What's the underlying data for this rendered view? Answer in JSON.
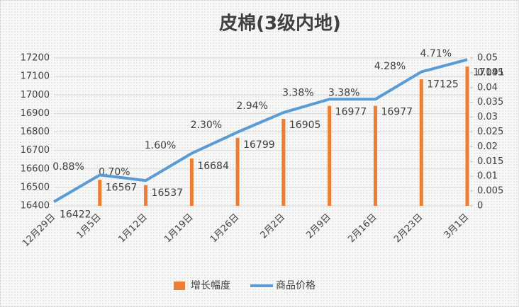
{
  "chart_data": {
    "type": "bar-line",
    "title": "皮棉(3级内地)",
    "categories": [
      "12月29日",
      "1月5日",
      "1月12日",
      "1月19日",
      "1月26日",
      "2月2日",
      "2月9日",
      "2月16日",
      "2月23日",
      "3月1日"
    ],
    "series": [
      {
        "name": "增长幅度",
        "type": "bar",
        "axis": "y2",
        "color": "#ed7d31",
        "values": [
          0,
          0.0088,
          0.007,
          0.016,
          0.023,
          0.0294,
          0.0338,
          0.0338,
          0.0428,
          0.0471
        ],
        "value_labels": [
          null,
          "0.88%",
          "0.70%",
          "1.60%",
          "2.30%",
          "2.94%",
          "3.38%",
          "3.38%",
          "4.28%",
          "4.71%"
        ]
      },
      {
        "name": "商品价格",
        "type": "line",
        "axis": "y",
        "color": "#5b9bd5",
        "values": [
          16422,
          16567,
          16537,
          16684,
          16799,
          16905,
          16977,
          16977,
          17125,
          17191
        ]
      }
    ],
    "ylim": [
      16400,
      17200
    ],
    "yticks": [
      16400,
      16500,
      16600,
      16700,
      16800,
      16900,
      17000,
      17100,
      17200
    ],
    "y2lim": [
      0,
      0.05
    ],
    "y2ticks": [
      0,
      0.005,
      0.01,
      0.015,
      0.02,
      0.025,
      0.03,
      0.035,
      0.04,
      0.045,
      0.05
    ],
    "grid": true,
    "legend": "bottom"
  }
}
